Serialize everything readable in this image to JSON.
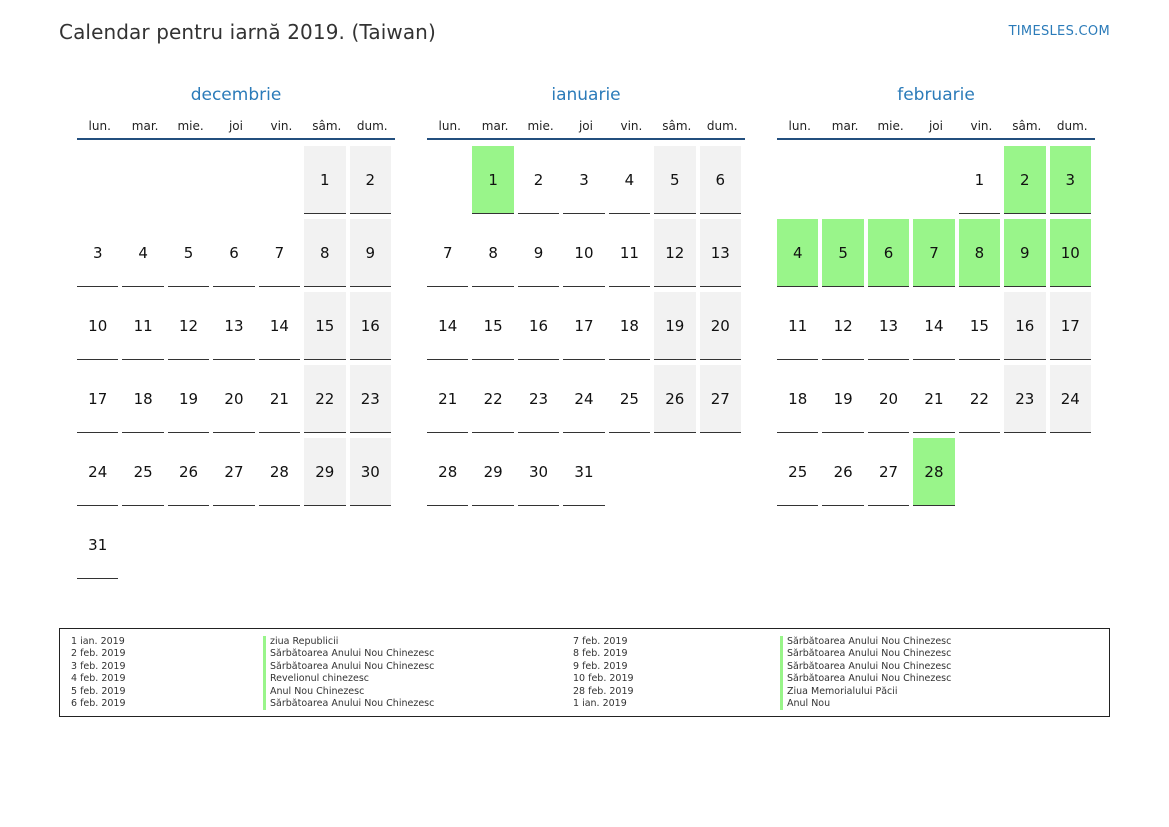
{
  "header": {
    "title": "Calendar pentru iarnă 2019. (Taiwan)",
    "site": "TIMESLES.COM"
  },
  "colors": {
    "accent": "#2b7bb9",
    "holiday": "#99f58a",
    "weekend": "#f2f2f2",
    "rule": "#234f7e"
  },
  "weekdays": [
    "lun.",
    "mar.",
    "mie.",
    "joi",
    "vin.",
    "sâm.",
    "dum."
  ],
  "months": [
    {
      "name": "decembrie",
      "offset": 5,
      "days": 31,
      "holidays": []
    },
    {
      "name": "ianuarie",
      "offset": 1,
      "days": 31,
      "holidays": [
        1
      ]
    },
    {
      "name": "februarie",
      "offset": 4,
      "days": 28,
      "holidays": [
        2,
        3,
        4,
        5,
        6,
        7,
        8,
        9,
        10,
        28
      ]
    }
  ],
  "legend": {
    "left": [
      {
        "date": "1 ian. 2019",
        "name": "ziua Republicii"
      },
      {
        "date": "2 feb. 2019",
        "name": "Sărbătoarea Anului Nou Chinezesc"
      },
      {
        "date": "3 feb. 2019",
        "name": "Sărbătoarea Anului Nou Chinezesc"
      },
      {
        "date": "4 feb. 2019",
        "name": "Revelionul chinezesc"
      },
      {
        "date": "5 feb. 2019",
        "name": "Anul Nou Chinezesc"
      },
      {
        "date": "6 feb. 2019",
        "name": "Sărbătoarea Anului Nou Chinezesc"
      }
    ],
    "right": [
      {
        "date": "7 feb. 2019",
        "name": "Sărbătoarea Anului Nou Chinezesc"
      },
      {
        "date": "8 feb. 2019",
        "name": "Sărbătoarea Anului Nou Chinezesc"
      },
      {
        "date": "9 feb. 2019",
        "name": "Sărbătoarea Anului Nou Chinezesc"
      },
      {
        "date": "10 feb. 2019",
        "name": "Sărbătoarea Anului Nou Chinezesc"
      },
      {
        "date": "28 feb. 2019",
        "name": "Ziua Memorialului Păcii"
      },
      {
        "date": "1 ian. 2019",
        "name": "Anul Nou"
      }
    ]
  }
}
